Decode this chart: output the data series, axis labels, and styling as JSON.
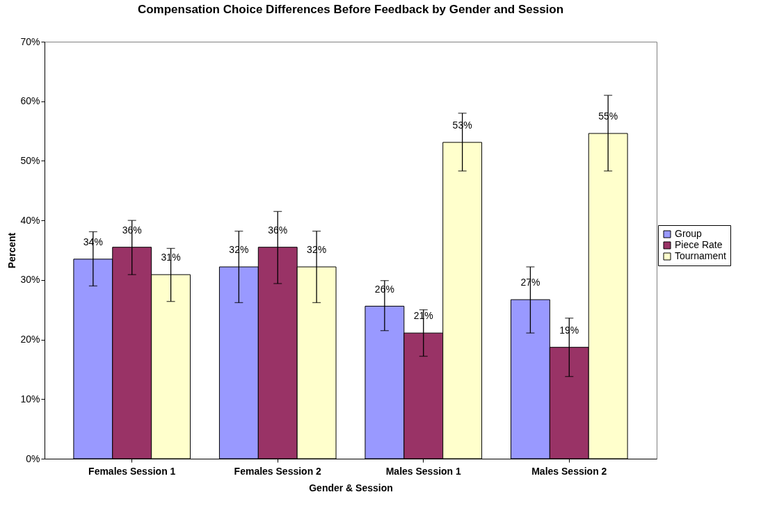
{
  "chart_data": {
    "type": "bar",
    "title": "Compensation Choice Differences Before Feedback by Gender and Session",
    "xlabel": "Gender & Session",
    "ylabel": "Percent",
    "categories": [
      "Females Session 1",
      "Females Session 2",
      "Males Session 1",
      "Males Session 2"
    ],
    "series": [
      {
        "name": "Group",
        "color": "#9999ff",
        "values": [
          33.5,
          32.2,
          25.6,
          26.7
        ],
        "errors": [
          [
            29.0,
            38.1
          ],
          [
            26.2,
            38.2
          ],
          [
            21.5,
            29.9
          ],
          [
            21.1,
            32.2
          ]
        ],
        "value_labels": [
          "34%",
          "32%",
          "26%",
          "27%"
        ]
      },
      {
        "name": "Piece Rate",
        "color": "#993366",
        "values": [
          35.5,
          35.5,
          21.1,
          18.7
        ],
        "errors": [
          [
            30.9,
            40.0
          ],
          [
            29.4,
            41.5
          ],
          [
            17.2,
            25.0
          ],
          [
            13.8,
            23.6
          ]
        ],
        "value_labels": [
          "36%",
          "36%",
          "21%",
          "19%"
        ]
      },
      {
        "name": "Tournament",
        "color": "#ffffcc",
        "values": [
          30.9,
          32.2,
          53.1,
          54.6
        ],
        "errors": [
          [
            26.4,
            35.3
          ],
          [
            26.2,
            38.2
          ],
          [
            48.3,
            58.0
          ],
          [
            48.3,
            61.0
          ]
        ],
        "value_labels": [
          "31%",
          "32%",
          "53%",
          "55%"
        ]
      }
    ],
    "ylim": [
      0,
      70
    ],
    "yticks": [
      {
        "value": 0,
        "label": "0%"
      },
      {
        "value": 10,
        "label": "10%"
      },
      {
        "value": 20,
        "label": "20%"
      },
      {
        "value": 30,
        "label": "30%"
      },
      {
        "value": 40,
        "label": "40%"
      },
      {
        "value": 50,
        "label": "50%"
      },
      {
        "value": 60,
        "label": "60%"
      },
      {
        "value": 70,
        "label": "70%"
      }
    ],
    "grid": false,
    "legend": "right"
  }
}
